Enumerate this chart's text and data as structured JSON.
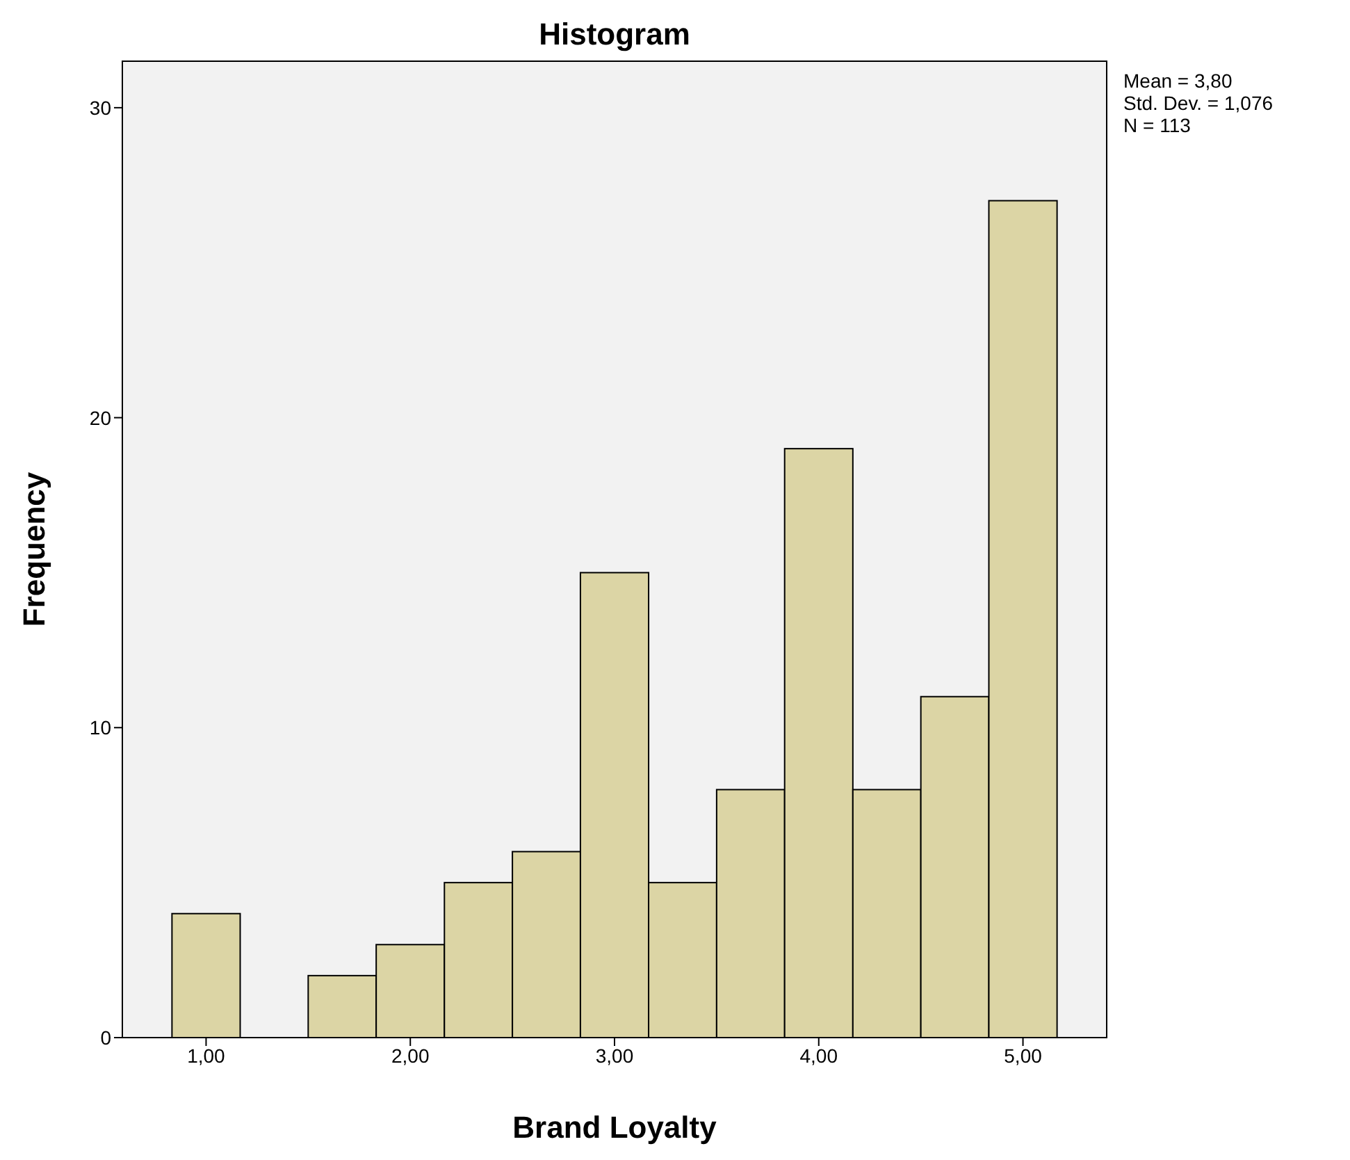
{
  "chart_data": {
    "type": "histogram",
    "title": "Histogram",
    "xlabel": "Brand Loyalty",
    "ylabel": "Frequency",
    "bins": [
      0.833,
      1.167,
      1.5,
      1.833,
      2.167,
      2.5,
      2.833,
      3.167,
      3.5,
      3.833,
      4.167,
      4.5,
      4.833,
      5.167
    ],
    "values": [
      4,
      0,
      2,
      3,
      5,
      6,
      15,
      5,
      8,
      19,
      8,
      11,
      27
    ],
    "color": "#dcd5a5",
    "xlim": [
      0.59,
      5.41
    ],
    "xticks": [
      {
        "value": 1,
        "label": "1,00"
      },
      {
        "value": 2,
        "label": "2,00"
      },
      {
        "value": 3,
        "label": "3,00"
      },
      {
        "value": 4,
        "label": "4,00"
      },
      {
        "value": 5,
        "label": "5,00"
      }
    ],
    "ylim": [
      0,
      31.5
    ],
    "yticks": [
      0,
      10,
      20,
      30
    ],
    "annotations": [
      "Mean = 3,80",
      "Std. Dev. = 1,076",
      "N = 113"
    ]
  }
}
